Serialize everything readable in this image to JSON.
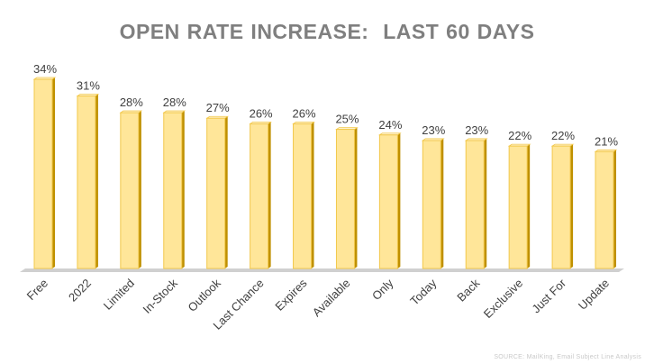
{
  "chart_data": {
    "type": "bar",
    "title": "OPEN RATE INCREASE:  LAST 60 DAYS",
    "categories": [
      "Free",
      "2022",
      "Limited",
      "In-Stock",
      "Outlook",
      "Last Chance",
      "Expires",
      "Available",
      "Only",
      "Today",
      "Back",
      "Exclusive",
      "Just For",
      "Update"
    ],
    "values": [
      34,
      31,
      28,
      28,
      27,
      26,
      26,
      25,
      24,
      23,
      23,
      22,
      22,
      21
    ],
    "data_labels": [
      "34%",
      "31%",
      "28%",
      "28%",
      "27%",
      "26%",
      "26%",
      "25%",
      "24%",
      "23%",
      "23%",
      "22%",
      "22%",
      "21%"
    ],
    "value_suffix": "%",
    "ylim": [
      0,
      34
    ],
    "grid": false,
    "legend": "none",
    "style": "3d-column",
    "colors": {
      "bar_front": "#ffe699",
      "bar_border": "#f2c84b",
      "bar_side": "#bf9000",
      "bar_top": "#fff2cc",
      "floor": "#d0d0d0",
      "label_text": "#404040",
      "title_text": "#7f7f7f"
    }
  },
  "footer": {
    "text": "SOURCE: MailKing, Email Subject Line Analysis"
  }
}
